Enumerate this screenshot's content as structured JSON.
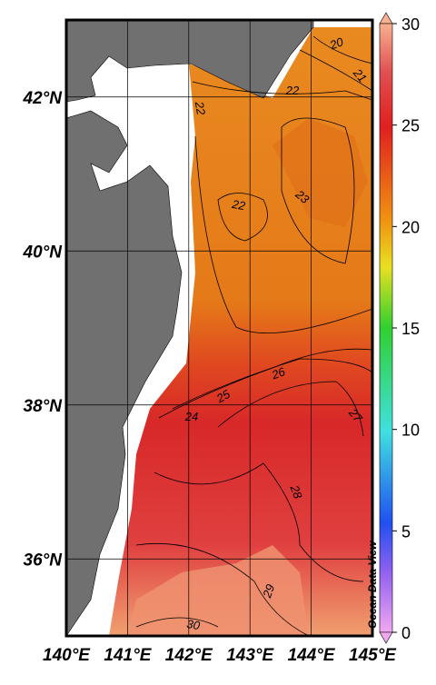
{
  "map": {
    "xlim": [
      140,
      145
    ],
    "ylim": [
      35,
      43
    ],
    "xticks": [
      {
        "value": 140,
        "label": "140°E"
      },
      {
        "value": 141,
        "label": "141°E"
      },
      {
        "value": 142,
        "label": "142°E"
      },
      {
        "value": 143,
        "label": "143°E"
      },
      {
        "value": 144,
        "label": "144°E"
      },
      {
        "value": 145,
        "label": "145°E"
      }
    ],
    "yticks": [
      {
        "value": 36,
        "label": "36°N"
      },
      {
        "value": 38,
        "label": "38°N"
      },
      {
        "value": 40,
        "label": "40°N"
      },
      {
        "value": 42,
        "label": "42°N"
      }
    ],
    "colorbar": {
      "lim": [
        0,
        30
      ],
      "ticks": [
        0,
        5,
        10,
        15,
        20,
        25,
        30
      ]
    },
    "contour_labels": [
      20,
      21,
      22,
      22,
      22,
      23,
      24,
      25,
      26,
      27,
      28,
      29,
      30
    ],
    "watermark": "Ocean Data View"
  }
}
